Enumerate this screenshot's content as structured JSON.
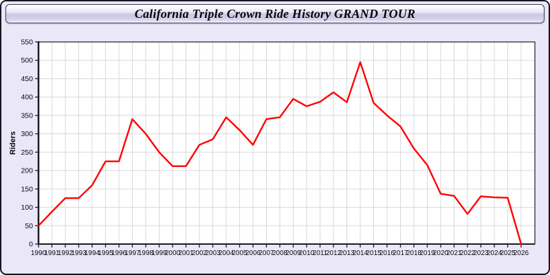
{
  "window": {
    "title": "California Triple Crown Ride History GRAND TOUR"
  },
  "colors": {
    "canvas_bg": "#e9e7f8",
    "plot_bg": "#ffffff",
    "grid": "#d9d9d9",
    "axis": "#1b1b24",
    "tick_text": "#0a0a14",
    "line": "#ff0000",
    "title_text": "#050508"
  },
  "chart_data": {
    "type": "line",
    "title": "California Triple Crown Ride History GRAND TOUR",
    "xlabel": "",
    "ylabel": "Riders",
    "ylim": [
      0,
      550
    ],
    "ytick_step": 50,
    "grid": true,
    "legend": "none",
    "x": [
      1990,
      1991,
      1992,
      1993,
      1994,
      1995,
      1996,
      1997,
      1998,
      1999,
      2000,
      2001,
      2002,
      2003,
      2004,
      2005,
      2006,
      2007,
      2008,
      2009,
      2010,
      2011,
      2012,
      2013,
      2014,
      2015,
      2016,
      2017,
      2018,
      2019,
      2020,
      2021,
      2022,
      2023,
      2024,
      2025,
      2026
    ],
    "series": [
      {
        "name": "Riders",
        "color": "#ff0000",
        "values": [
          50,
          88,
          125,
          125,
          160,
          225,
          225,
          340,
          300,
          250,
          212,
          212,
          270,
          285,
          345,
          310,
          270,
          340,
          345,
          395,
          375,
          387,
          413,
          386,
          495,
          384,
          350,
          320,
          260,
          215,
          137,
          131,
          82,
          130,
          127,
          126,
          0
        ]
      }
    ]
  }
}
